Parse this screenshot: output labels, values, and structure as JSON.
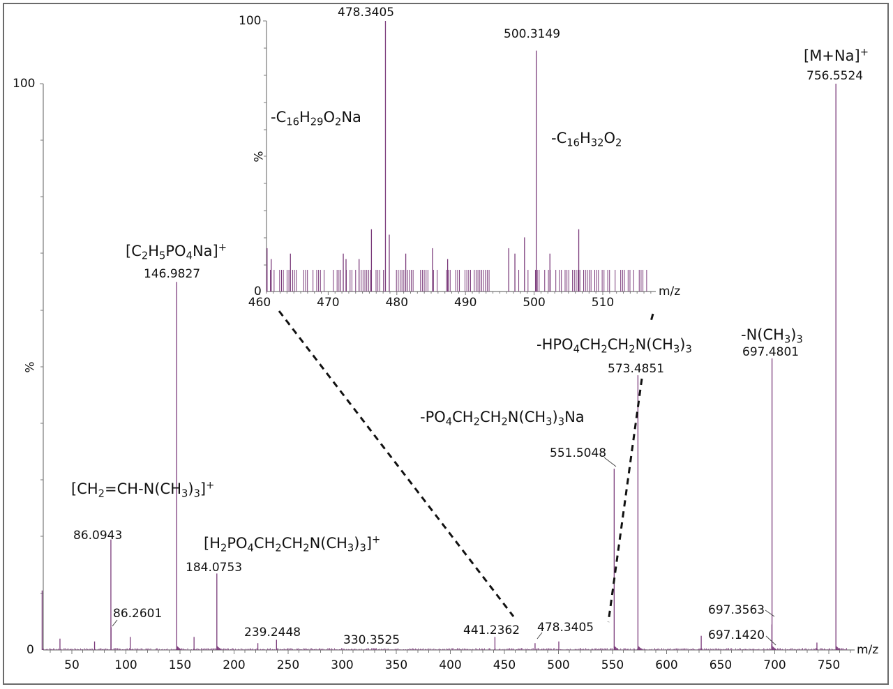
{
  "chart_data": [
    {
      "type": "bar",
      "title": "",
      "xlabel": "m/z",
      "ylabel": "%",
      "xlim": [
        22,
        770
      ],
      "ylim": [
        0,
        100
      ],
      "x_ticks": [
        50,
        100,
        150,
        200,
        250,
        300,
        350,
        400,
        450,
        500,
        550,
        600,
        650,
        700,
        750
      ],
      "y_ticks": [
        0,
        100
      ],
      "grid": false,
      "color": "#7a3a7a",
      "peaks": [
        {
          "mz": 22.5,
          "intensity": 10.5,
          "label": ""
        },
        {
          "mz": 39,
          "intensity": 2.0,
          "label": ""
        },
        {
          "mz": 71,
          "intensity": 1.5,
          "label": ""
        },
        {
          "mz": 86.0943,
          "intensity": 19.5,
          "label": "86.0943"
        },
        {
          "mz": 86.2601,
          "intensity": 4.0,
          "label": "86.2601"
        },
        {
          "mz": 104,
          "intensity": 2.3,
          "label": ""
        },
        {
          "mz": 146.9827,
          "intensity": 65.0,
          "label": "146.9827"
        },
        {
          "mz": 163,
          "intensity": 2.3,
          "label": ""
        },
        {
          "mz": 184.0753,
          "intensity": 13.5,
          "label": "184.0753"
        },
        {
          "mz": 222,
          "intensity": 1.2,
          "label": ""
        },
        {
          "mz": 239.2448,
          "intensity": 1.8,
          "label": "239.2448"
        },
        {
          "mz": 330.3525,
          "intensity": 0.3,
          "label": "330.3525"
        },
        {
          "mz": 441.2362,
          "intensity": 2.3,
          "label": "441.2362"
        },
        {
          "mz": 478.3405,
          "intensity": 1.2,
          "label": "478.3405"
        },
        {
          "mz": 500.3149,
          "intensity": 1.5,
          "label": ""
        },
        {
          "mz": 551.5048,
          "intensity": 32.0,
          "label": "551.5048"
        },
        {
          "mz": 573.4851,
          "intensity": 48.5,
          "label": "573.4851"
        },
        {
          "mz": 632,
          "intensity": 2.5,
          "label": ""
        },
        {
          "mz": 697.142,
          "intensity": 1.0,
          "label": "697.1420"
        },
        {
          "mz": 697.3563,
          "intensity": 4.5,
          "label": "697.3563"
        },
        {
          "mz": 697.4801,
          "intensity": 51.5,
          "label": "697.4801"
        },
        {
          "mz": 739,
          "intensity": 1.3,
          "label": ""
        },
        {
          "mz": 756.5524,
          "intensity": 100.0,
          "label": "756.5524"
        }
      ],
      "annotations": [
        {
          "text": "[C2H5PO4Na]+",
          "mz": 146.9827
        },
        {
          "text": "[CH2=CH-N(CH3)3]+",
          "mz": 146.9827
        },
        {
          "text": "[H2PO4CH2CH2N(CH3)3]+",
          "mz": 184.0753
        },
        {
          "text": "-PO4CH2CH2N(CH3)3Na",
          "mz": 551.5048
        },
        {
          "text": "-HPO4CH2CH2N(CH3)3",
          "mz": 573.4851
        },
        {
          "text": "-N(CH3)3",
          "mz": 697.4801
        },
        {
          "text": "[M+Na]+",
          "mz": 756.5524
        }
      ]
    },
    {
      "type": "bar",
      "title": "inset zoom 460-518 m/z",
      "xlabel": "m/z",
      "ylabel": "%",
      "xlim": [
        459.5,
        518
      ],
      "ylim": [
        0,
        100
      ],
      "x_ticks": [
        460,
        470,
        480,
        490,
        500,
        510
      ],
      "y_ticks": [
        0,
        100
      ],
      "grid": false,
      "color": "#7a3a7a",
      "peaks": [
        {
          "mz": 478.3405,
          "intensity": 100,
          "label": "478.3405"
        },
        {
          "mz": 500.3149,
          "intensity": 89,
          "label": "500.3149"
        },
        {
          "mz": 476.3,
          "intensity": 23,
          "label": ""
        },
        {
          "mz": 478.9,
          "intensity": 21,
          "label": ""
        },
        {
          "mz": 506.5,
          "intensity": 23,
          "label": ""
        },
        {
          "mz": 498.6,
          "intensity": 20,
          "label": ""
        },
        {
          "mz": 461.1,
          "intensity": 16,
          "label": ""
        },
        {
          "mz": 485.2,
          "intensity": 16,
          "label": ""
        },
        {
          "mz": 496.3,
          "intensity": 16,
          "label": ""
        },
        {
          "mz": 464.5,
          "intensity": 14,
          "label": ""
        },
        {
          "mz": 472.2,
          "intensity": 14,
          "label": ""
        },
        {
          "mz": 481.3,
          "intensity": 14,
          "label": ""
        },
        {
          "mz": 497.2,
          "intensity": 14,
          "label": ""
        },
        {
          "mz": 502.3,
          "intensity": 14,
          "label": ""
        },
        {
          "mz": 461.7,
          "intensity": 12,
          "label": ""
        },
        {
          "mz": 472.6,
          "intensity": 12,
          "label": ""
        },
        {
          "mz": 474.5,
          "intensity": 12,
          "label": ""
        },
        {
          "mz": 487.4,
          "intensity": 12,
          "label": ""
        }
      ],
      "noise_floor_intensity": 8,
      "annotations": [
        {
          "text": "-C16H29O2Na",
          "mz": 478.3405
        },
        {
          "text": "-C16H32O2",
          "mz": 500.3149
        }
      ]
    }
  ],
  "main": {
    "y_top_label": "100",
    "y_zero_label": "0",
    "y_axis_label": "%",
    "x_axis_label": "m/z",
    "x_tick_labels": [
      "50",
      "100",
      "150",
      "200",
      "250",
      "300",
      "350",
      "400",
      "450",
      "500",
      "550",
      "600",
      "650",
      "700",
      "750"
    ],
    "peak_labels": {
      "p86a": "86.0943",
      "p86b": "86.2601",
      "p147": "146.9827",
      "p184": "184.0753",
      "p239": "239.2448",
      "p330": "330.3525",
      "p441": "441.2362",
      "p478": "478.3405",
      "p551": "551.5048",
      "p573": "573.4851",
      "p697a": "697.3563",
      "p697b": "697.1420",
      "p697c": "697.4801",
      "p756": "756.5524"
    },
    "annotations": {
      "c2h5po4na": {
        "pre": "[C",
        "s1": "2",
        "m1": "H",
        "s2": "5",
        "m2": "PO",
        "s3": "4",
        "m3": "Na]",
        "sup": "+"
      },
      "ch2chn": {
        "pre": "[CH",
        "s1": "2",
        "m1": "=CH-N(CH",
        "s2": "3",
        "m2": ")",
        "s3": "3",
        "m3": "]",
        "sup": "+"
      },
      "h2po4": {
        "pre": "[H",
        "s1": "2",
        "m1": "PO",
        "s2": "4",
        "m2": "CH",
        "s3": "2",
        "m3": "CH",
        "s4": "2",
        "m4": "N(CH",
        "s5": "3",
        "m5": ")",
        "s6": "3",
        "m6": "]",
        "sup": "+"
      },
      "po4na": {
        "pre": "-PO",
        "s1": "4",
        "m1": "CH",
        "s2": "2",
        "m2": "CH",
        "s3": "2",
        "m3": "N(CH",
        "s4": "3",
        "m4": ")",
        "s5": "3",
        "m5": "Na"
      },
      "hpo4": {
        "pre": "-HPO",
        "s1": "4",
        "m1": "CH",
        "s2": "2",
        "m2": "CH",
        "s3": "2",
        "m3": "N(CH",
        "s4": "3",
        "m4": ")",
        "s5": "3"
      },
      "nch3": {
        "pre": "-N(CH",
        "s1": "3",
        "m1": ")",
        "s2": "3"
      },
      "mna": {
        "pre": "[M+Na]",
        "sup": "+"
      }
    }
  },
  "inset": {
    "y_top_label": "100",
    "y_zero_label": "0",
    "y_axis_label": "%",
    "x_axis_label": "m/z",
    "x_tick_labels": [
      "460",
      "470",
      "480",
      "490",
      "500",
      "510"
    ],
    "peak_labels": {
      "p478": "478.3405",
      "p500": "500.3149"
    },
    "annotations": {
      "c16h29": {
        "pre": "-C",
        "s1": "16",
        "m1": "H",
        "s2": "29",
        "m2": "O",
        "s3": "2",
        "m3": "Na"
      },
      "c16h32": {
        "pre": "-C",
        "s1": "16",
        "m1": "H",
        "s2": "32",
        "m2": "O",
        "s3": "2"
      }
    }
  }
}
